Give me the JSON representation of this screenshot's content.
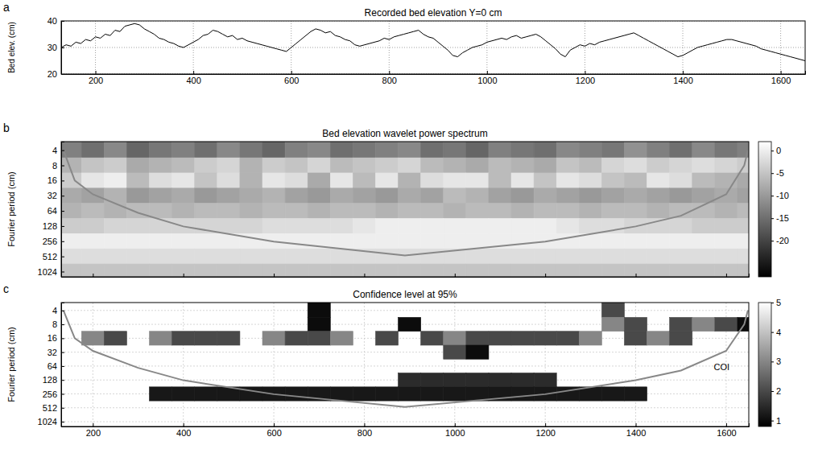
{
  "chart_data": [
    {
      "type": "line",
      "panel_label": "a",
      "title": "Recorded bed elevation Y=0 cm",
      "ylabel": "Bed elev. (cm)",
      "color": "#000000",
      "grid": true,
      "xlim": [
        130,
        1650
      ],
      "xticks": [
        200,
        400,
        600,
        800,
        1000,
        1200,
        1400,
        1600
      ],
      "ylim": [
        20,
        40
      ],
      "yticks": [
        20,
        30,
        40
      ],
      "x": [
        130,
        140,
        150,
        160,
        170,
        180,
        190,
        200,
        210,
        220,
        230,
        240,
        250,
        260,
        270,
        280,
        290,
        300,
        310,
        320,
        330,
        340,
        350,
        360,
        370,
        380,
        390,
        400,
        410,
        420,
        430,
        440,
        450,
        460,
        470,
        480,
        490,
        500,
        510,
        520,
        530,
        540,
        550,
        560,
        570,
        580,
        590,
        600,
        610,
        620,
        630,
        640,
        650,
        660,
        670,
        680,
        690,
        700,
        710,
        720,
        730,
        740,
        750,
        760,
        770,
        780,
        790,
        800,
        810,
        820,
        830,
        840,
        850,
        860,
        870,
        880,
        890,
        900,
        910,
        920,
        930,
        940,
        950,
        960,
        970,
        980,
        990,
        1000,
        1010,
        1020,
        1030,
        1040,
        1050,
        1060,
        1070,
        1080,
        1090,
        1100,
        1110,
        1120,
        1130,
        1140,
        1150,
        1160,
        1170,
        1180,
        1190,
        1200,
        1210,
        1220,
        1230,
        1240,
        1250,
        1260,
        1270,
        1280,
        1290,
        1300,
        1310,
        1320,
        1330,
        1340,
        1350,
        1360,
        1370,
        1380,
        1390,
        1400,
        1410,
        1420,
        1430,
        1440,
        1450,
        1460,
        1470,
        1480,
        1490,
        1500,
        1510,
        1520,
        1530,
        1540,
        1550,
        1560,
        1570,
        1580,
        1590,
        1600,
        1610,
        1620,
        1630,
        1640,
        1650
      ],
      "values": [
        30,
        31,
        30.5,
        32,
        31.5,
        33,
        32.5,
        34,
        33.5,
        35,
        34.5,
        36.5,
        36,
        38,
        38.5,
        39,
        38.5,
        37,
        36,
        35,
        33.5,
        33,
        32,
        31.5,
        30.5,
        30,
        31,
        32,
        33,
        34.5,
        35,
        36.5,
        36,
        35,
        34,
        34.5,
        33,
        33.5,
        32.5,
        32,
        31.5,
        31,
        30.5,
        30,
        29.5,
        29,
        28.5,
        30,
        31.5,
        33,
        34.5,
        36,
        37,
        36.5,
        35.5,
        36,
        34.5,
        34,
        33,
        32.5,
        31,
        30.5,
        31,
        31.5,
        32,
        32.5,
        33.5,
        33,
        34,
        34.5,
        35,
        35.5,
        36,
        36.5,
        35,
        34,
        33.5,
        32,
        30.5,
        29,
        27,
        26.5,
        28,
        29,
        30,
        30.5,
        31,
        32,
        32.5,
        33,
        33.5,
        33,
        34,
        34.5,
        33.5,
        34,
        34.5,
        35,
        34,
        32.5,
        31,
        29.5,
        27.5,
        26.5,
        29,
        30,
        31,
        30.5,
        31.5,
        31,
        32,
        32.5,
        33,
        33.5,
        34,
        34.5,
        35,
        35.5,
        34.5,
        33.5,
        32.5,
        31.5,
        30.5,
        29.5,
        28.5,
        27.5,
        26.5,
        27,
        28,
        29,
        30,
        30.5,
        31,
        31.5,
        32,
        32.5,
        33,
        33,
        32.5,
        32,
        31.5,
        31,
        30.5,
        29.5,
        29,
        28.5,
        28,
        27.5,
        27,
        26.5,
        26,
        25.5,
        25
      ]
    },
    {
      "type": "heatmap",
      "panel_label": "b",
      "title": "Bed elevation wavelet power spectrum",
      "ylabel": "Fourier period (cm)",
      "log": "y",
      "grid": false,
      "tick_labels": "y",
      "xlim": [
        130,
        1650
      ],
      "xticks": [
        200,
        400,
        600,
        800,
        1000,
        1200,
        1400,
        1600
      ],
      "ylim": [
        2.7,
        1300
      ],
      "yticks": [
        4,
        8,
        16,
        32,
        64,
        128,
        256,
        512,
        1024
      ],
      "x": [
        150,
        200,
        250,
        300,
        350,
        400,
        450,
        500,
        550,
        600,
        650,
        700,
        750,
        800,
        850,
        900,
        950,
        1000,
        1050,
        1100,
        1150,
        1200,
        1250,
        1300,
        1350,
        1400,
        1450,
        1500,
        1550,
        1600,
        1650
      ],
      "y": [
        4,
        8,
        16,
        32,
        64,
        128,
        256,
        512,
        1024
      ],
      "values": [
        [
          -13,
          -15,
          -12,
          -16,
          -14,
          -13,
          -15,
          -12,
          -14,
          -16,
          -13,
          -12,
          -15,
          -14,
          -13,
          -12,
          -15,
          -14,
          -16,
          -13,
          -14,
          -15,
          -12,
          -13,
          -14,
          -11,
          -13,
          -15,
          -12,
          -14,
          -13
        ],
        [
          -7,
          -5,
          -4,
          -8,
          -7,
          -6,
          -4,
          -3,
          -7,
          -4,
          -5,
          -3,
          -6,
          -5,
          -4,
          -3,
          -6,
          -7,
          -8,
          -6,
          -7,
          -8,
          -5,
          -6,
          -3,
          -2,
          -4,
          -3,
          -2,
          -3,
          -4
        ],
        [
          -4,
          -1,
          0,
          -6,
          -2,
          -1,
          -5,
          -2,
          -7,
          -1,
          -2,
          -8,
          -1,
          -6,
          -1,
          -7,
          -2,
          -1,
          -1,
          -6,
          -1,
          -5,
          -1,
          -2,
          -5,
          -6,
          -1,
          -2,
          -6,
          -7,
          -8
        ],
        [
          -8,
          -9,
          -7,
          -10,
          -9,
          -8,
          -10,
          -9,
          -8,
          -7,
          -9,
          -10,
          -8,
          -9,
          -10,
          -8,
          -9,
          -6,
          -7,
          -9,
          -10,
          -8,
          -9,
          -10,
          -9,
          -8,
          -9,
          -10,
          -9,
          -8,
          -9
        ],
        [
          -7,
          -6,
          -7,
          -6,
          -6,
          -7,
          -6,
          -6,
          -7,
          -6,
          -6,
          -7,
          -6,
          -6,
          -7,
          -6,
          -6,
          -7,
          -6,
          -6,
          -7,
          -6,
          -6,
          -7,
          -6,
          -6,
          -7,
          -6,
          -6,
          -7,
          -6
        ],
        [
          -4,
          -4,
          -3,
          -3,
          -3,
          -3,
          -3,
          -3,
          -3,
          -2,
          -2,
          -2,
          -2,
          -1,
          0,
          0,
          0,
          0,
          0,
          0,
          0,
          0,
          -1,
          -2,
          -2,
          -3,
          -3,
          -3,
          -4,
          -4,
          -4
        ],
        [
          0,
          0,
          0,
          0,
          0,
          0,
          0,
          0,
          0,
          0,
          0,
          0,
          0,
          0,
          0,
          0,
          0,
          0,
          0,
          0,
          0,
          0,
          0,
          0,
          0,
          0,
          0,
          0,
          0,
          0,
          0
        ],
        [
          -2,
          -2,
          -2,
          -2,
          -2,
          -2,
          -2,
          -2,
          -2,
          -2,
          -2,
          -2,
          -2,
          -2,
          -2,
          -2,
          -2,
          -2,
          -2,
          -2,
          -2,
          -2,
          -2,
          -2,
          -2,
          -2,
          -2,
          -2,
          -2,
          -2,
          -2
        ],
        [
          -5,
          -5,
          -5,
          -5,
          -5,
          -5,
          -5,
          -5,
          -5,
          -5,
          -5,
          -5,
          -5,
          -5,
          -5,
          -5,
          -5,
          -5,
          -5,
          -5,
          -5,
          -5,
          -5,
          -5,
          -5,
          -5,
          -5,
          -5,
          -5,
          -5,
          -5
        ]
      ],
      "colorbar": {
        "range": [
          -28,
          2
        ],
        "ticks": [
          0,
          -5,
          -10,
          -15,
          -20
        ]
      },
      "coi": {
        "x": [
          135,
          160,
          200,
          300,
          400,
          600,
          890,
          1200,
          1400,
          1500,
          1600,
          1640,
          1648
        ],
        "y": [
          4,
          16,
          30,
          70,
          130,
          260,
          490,
          260,
          130,
          80,
          30,
          8,
          4
        ]
      }
    },
    {
      "type": "heatmap",
      "panel_label": "c",
      "title": "Confidence level at 95%",
      "ylabel": "Fourier period (cm)",
      "log": "y",
      "grid": true,
      "xlim": [
        130,
        1650
      ],
      "xticks": [
        200,
        400,
        600,
        800,
        1000,
        1200,
        1400,
        1600
      ],
      "ylim": [
        2.7,
        1300
      ],
      "yticks": [
        4,
        8,
        16,
        32,
        64,
        128,
        256,
        512,
        1024
      ],
      "x": [
        150,
        200,
        250,
        300,
        350,
        400,
        450,
        500,
        550,
        600,
        650,
        700,
        750,
        800,
        850,
        900,
        950,
        1000,
        1050,
        1100,
        1150,
        1200,
        1250,
        1300,
        1350,
        1400,
        1450,
        1500,
        1550,
        1600,
        1650
      ],
      "y": [
        4,
        8,
        16,
        32,
        64,
        128,
        256,
        512,
        1024
      ],
      "values": [
        [
          null,
          null,
          null,
          null,
          null,
          null,
          null,
          null,
          null,
          null,
          null,
          1,
          null,
          null,
          null,
          null,
          null,
          null,
          null,
          null,
          null,
          null,
          null,
          null,
          2,
          null,
          null,
          null,
          null,
          null,
          null
        ],
        [
          null,
          null,
          null,
          null,
          null,
          null,
          null,
          null,
          null,
          null,
          null,
          1,
          null,
          null,
          null,
          1,
          null,
          null,
          null,
          null,
          null,
          null,
          null,
          null,
          3,
          2,
          null,
          2,
          3,
          2,
          1
        ],
        [
          null,
          3,
          2,
          null,
          3,
          2,
          2,
          2,
          null,
          3,
          2,
          2,
          3,
          null,
          2,
          null,
          2,
          3,
          2,
          2,
          2,
          2,
          2,
          3,
          null,
          2,
          3,
          2,
          null,
          null,
          null
        ],
        [
          null,
          null,
          null,
          null,
          null,
          null,
          null,
          null,
          null,
          null,
          null,
          null,
          null,
          null,
          null,
          null,
          null,
          2,
          1,
          null,
          null,
          null,
          null,
          null,
          null,
          null,
          null,
          null,
          null,
          null,
          null
        ],
        [
          null,
          null,
          null,
          null,
          null,
          null,
          null,
          null,
          null,
          null,
          null,
          null,
          null,
          null,
          null,
          null,
          null,
          null,
          null,
          null,
          null,
          null,
          null,
          null,
          null,
          null,
          null,
          null,
          null,
          null,
          null
        ],
        [
          null,
          null,
          null,
          null,
          null,
          null,
          null,
          null,
          null,
          null,
          null,
          null,
          null,
          null,
          null,
          1.5,
          1.5,
          1.5,
          1.5,
          1.5,
          1.5,
          1.5,
          null,
          null,
          null,
          null,
          null,
          null,
          null,
          null,
          null
        ],
        [
          null,
          null,
          null,
          null,
          1.2,
          1.2,
          1.2,
          1.2,
          1.2,
          1.2,
          1.2,
          1.2,
          1.2,
          1.2,
          1.2,
          1.2,
          1.2,
          1.2,
          1.2,
          1.2,
          1.2,
          1.2,
          1.2,
          1.2,
          1.2,
          1.2,
          null,
          null,
          null,
          null,
          null
        ],
        [
          null,
          null,
          null,
          null,
          null,
          null,
          null,
          null,
          null,
          null,
          null,
          null,
          null,
          null,
          null,
          null,
          null,
          null,
          null,
          null,
          null,
          null,
          null,
          null,
          null,
          null,
          null,
          null,
          null,
          null,
          null
        ],
        [
          null,
          null,
          null,
          null,
          null,
          null,
          null,
          null,
          null,
          null,
          null,
          null,
          null,
          null,
          null,
          null,
          null,
          null,
          null,
          null,
          null,
          null,
          null,
          null,
          null,
          null,
          null,
          null,
          null,
          null,
          null
        ]
      ],
      "colorbar": {
        "range": [
          0.8,
          5
        ],
        "ticks": [
          1,
          2,
          3,
          4,
          5
        ]
      },
      "coi": {
        "x": [
          135,
          160,
          200,
          300,
          400,
          600,
          890,
          1200,
          1400,
          1500,
          1600,
          1640,
          1648
        ],
        "y": [
          4,
          16,
          30,
          70,
          130,
          260,
          490,
          260,
          130,
          80,
          30,
          8,
          4
        ]
      },
      "annotations": [
        {
          "text": "COI",
          "x": 1590,
          "y": 70
        }
      ]
    }
  ]
}
